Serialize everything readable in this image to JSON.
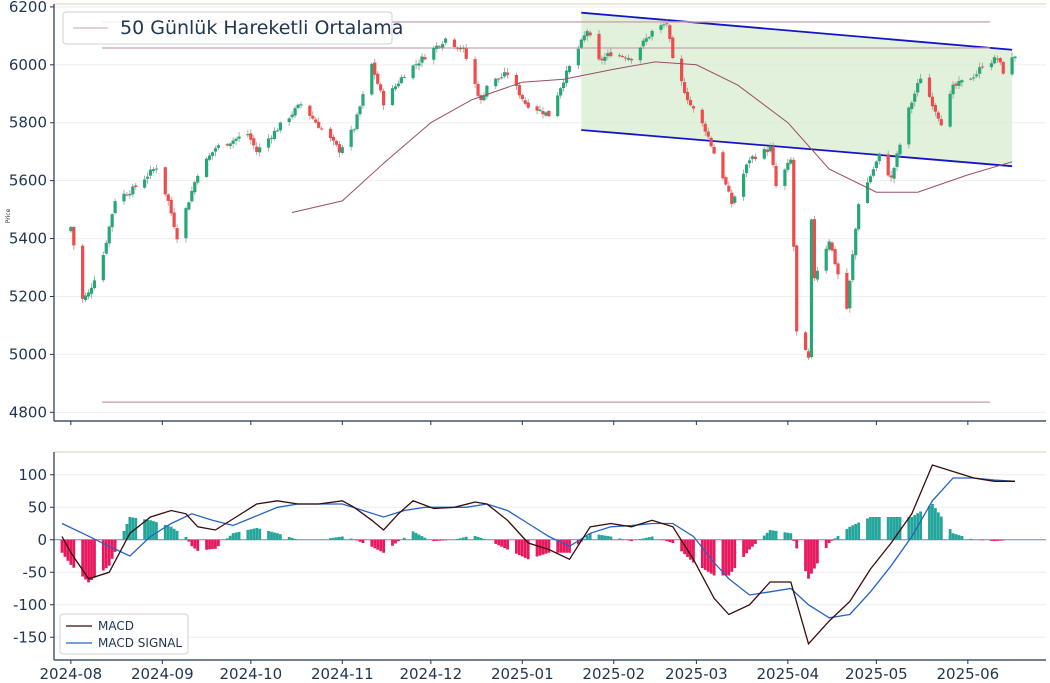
{
  "chart_data": [
    {
      "type": "candlestick",
      "ylabel": "Price",
      "ylim": [
        4770,
        6210
      ],
      "yticks": [
        4800,
        5000,
        5200,
        5400,
        5600,
        5800,
        6000,
        6200
      ],
      "x_range": [
        "2024-07-29",
        "2025-06-18"
      ],
      "x_ticks": [
        "2024-08-01",
        "2024-09-01",
        "2024-10-01",
        "2024-11-01",
        "2024-12-01",
        "2025-01-01",
        "2025-02-01",
        "2025-03-01",
        "2025-04-01",
        "2025-05-01",
        "2025-06-01"
      ],
      "x_tick_labels": [
        "2024-08",
        "2024-09",
        "2024-10",
        "2024-11",
        "2024-12",
        "2025-01",
        "2025-02",
        "2025-03",
        "2025-04",
        "2025-05",
        "2025-06"
      ],
      "legend": {
        "label": "50 Günlük Hareketli Ortalama",
        "loc": "upper-left"
      },
      "colors": {
        "up": "#26a776",
        "down": "#ef4b4b",
        "ma": "#9a4e64",
        "channel": "#1515c8",
        "channel_fill": "#d6ebcc",
        "level": "#c9a5b0",
        "axis": "#1f3552"
      },
      "horizontal_levels": [
        6148,
        6058,
        4835
      ],
      "channel": {
        "start_date": "2025-01-21",
        "end_date": "2025-06-16",
        "upper": [
          6180,
          6052
        ],
        "lower": [
          5775,
          5650
        ]
      },
      "anchors": [
        [
          "2024-08-01",
          5440
        ],
        [
          "2024-08-05",
          5190
        ],
        [
          "2024-08-07",
          5210
        ],
        [
          "2024-08-12",
          5345
        ],
        [
          "2024-08-16",
          5535
        ],
        [
          "2024-08-22",
          5570
        ],
        [
          "2024-08-30",
          5648
        ],
        [
          "2024-09-03",
          5528
        ],
        [
          "2024-09-06",
          5408
        ],
        [
          "2024-09-13",
          5626
        ],
        [
          "2024-09-19",
          5713
        ],
        [
          "2024-09-30",
          5762
        ],
        [
          "2024-10-03",
          5700
        ],
        [
          "2024-10-10",
          5780
        ],
        [
          "2024-10-18",
          5864
        ],
        [
          "2024-10-31",
          5705
        ],
        [
          "2024-11-05",
          5782
        ],
        [
          "2024-11-11",
          6001
        ],
        [
          "2024-11-15",
          5870
        ],
        [
          "2024-11-22",
          5969
        ],
        [
          "2024-12-06",
          6090
        ],
        [
          "2024-12-12",
          6051
        ],
        [
          "2024-12-18",
          5872
        ],
        [
          "2024-12-20",
          5930
        ],
        [
          "2024-12-27",
          5970
        ],
        [
          "2025-01-02",
          5868
        ],
        [
          "2025-01-10",
          5827
        ],
        [
          "2025-01-15",
          5949
        ],
        [
          "2025-01-23",
          6119
        ],
        [
          "2025-01-27",
          6012
        ],
        [
          "2025-01-31",
          6040
        ],
        [
          "2025-02-07",
          6025
        ],
        [
          "2025-02-14",
          6114
        ],
        [
          "2025-02-19",
          6144
        ],
        [
          "2025-02-21",
          6013
        ],
        [
          "2025-02-27",
          5861
        ],
        [
          "2025-03-04",
          5778
        ],
        [
          "2025-03-10",
          5614
        ],
        [
          "2025-03-13",
          5521
        ],
        [
          "2025-03-19",
          5675
        ],
        [
          "2025-03-26",
          5712
        ],
        [
          "2025-03-28",
          5580
        ],
        [
          "2025-04-02",
          5670
        ],
        [
          "2025-04-04",
          5074
        ],
        [
          "2025-04-08",
          4982
        ],
        [
          "2025-04-09",
          5456
        ],
        [
          "2025-04-10",
          5268
        ],
        [
          "2025-04-15",
          5396
        ],
        [
          "2025-04-21",
          5158
        ],
        [
          "2025-04-25",
          5525
        ],
        [
          "2025-05-02",
          5686
        ],
        [
          "2025-05-06",
          5606
        ],
        [
          "2025-05-12",
          5844
        ],
        [
          "2025-05-16",
          5958
        ],
        [
          "2025-05-21",
          5845
        ],
        [
          "2025-05-23",
          5802
        ],
        [
          "2025-05-27",
          5921
        ],
        [
          "2025-06-04",
          5970
        ],
        [
          "2025-06-06",
          6000
        ],
        [
          "2025-06-11",
          6022
        ],
        [
          "2025-06-13",
          5977
        ],
        [
          "2025-06-17",
          6033
        ]
      ],
      "ma_anchors": [
        [
          "2024-10-15",
          5490
        ],
        [
          "2024-11-01",
          5530
        ],
        [
          "2024-11-15",
          5660
        ],
        [
          "2024-12-01",
          5800
        ],
        [
          "2024-12-15",
          5880
        ],
        [
          "2025-01-01",
          5940
        ],
        [
          "2025-01-15",
          5950
        ],
        [
          "2025-02-01",
          5985
        ],
        [
          "2025-02-15",
          6010
        ],
        [
          "2025-03-01",
          6000
        ],
        [
          "2025-03-15",
          5930
        ],
        [
          "2025-04-01",
          5800
        ],
        [
          "2025-04-15",
          5640
        ],
        [
          "2025-05-01",
          5560
        ],
        [
          "2025-05-15",
          5560
        ],
        [
          "2025-06-01",
          5620
        ],
        [
          "2025-06-16",
          5665
        ]
      ]
    },
    {
      "type": "macd",
      "ylim": [
        -185,
        135
      ],
      "yticks": [
        -150,
        -100,
        -50,
        0,
        50,
        100
      ],
      "legend": {
        "entries": [
          "MACD",
          "MACD SIGNAL"
        ],
        "loc": "lower-left"
      },
      "colors": {
        "macd": "#3a0a0a",
        "signal": "#2563c4",
        "hist_pos": "#22a59a",
        "hist_neg": "#e8185e",
        "zero": "#7a8aa0"
      },
      "macd": [
        [
          "2024-07-29",
          5
        ],
        [
          "2024-08-01",
          -20
        ],
        [
          "2024-08-07",
          -60
        ],
        [
          "2024-08-14",
          -50
        ],
        [
          "2024-08-21",
          10
        ],
        [
          "2024-08-28",
          35
        ],
        [
          "2024-09-04",
          45
        ],
        [
          "2024-09-09",
          40
        ],
        [
          "2024-09-13",
          20
        ],
        [
          "2024-09-19",
          15
        ],
        [
          "2024-09-26",
          35
        ],
        [
          "2024-10-03",
          55
        ],
        [
          "2024-10-10",
          60
        ],
        [
          "2024-10-17",
          55
        ],
        [
          "2024-10-24",
          55
        ],
        [
          "2024-11-01",
          60
        ],
        [
          "2024-11-05",
          50
        ],
        [
          "2024-11-11",
          30
        ],
        [
          "2024-11-15",
          15
        ],
        [
          "2024-11-20",
          40
        ],
        [
          "2024-11-25",
          60
        ],
        [
          "2024-12-02",
          48
        ],
        [
          "2024-12-09",
          50
        ],
        [
          "2024-12-16",
          58
        ],
        [
          "2024-12-20",
          55
        ],
        [
          "2024-12-27",
          30
        ],
        [
          "2025-01-03",
          -5
        ],
        [
          "2025-01-10",
          -15
        ],
        [
          "2025-01-17",
          -30
        ],
        [
          "2025-01-24",
          20
        ],
        [
          "2025-01-31",
          25
        ],
        [
          "2025-02-07",
          20
        ],
        [
          "2025-02-14",
          30
        ],
        [
          "2025-02-21",
          20
        ],
        [
          "2025-02-28",
          -30
        ],
        [
          "2025-03-07",
          -90
        ],
        [
          "2025-03-12",
          -115
        ],
        [
          "2025-03-19",
          -100
        ],
        [
          "2025-03-26",
          -65
        ],
        [
          "2025-04-02",
          -65
        ],
        [
          "2025-04-08",
          -160
        ],
        [
          "2025-04-15",
          -125
        ],
        [
          "2025-04-22",
          -95
        ],
        [
          "2025-04-29",
          -45
        ],
        [
          "2025-05-06",
          -5
        ],
        [
          "2025-05-13",
          40
        ],
        [
          "2025-05-20",
          115
        ],
        [
          "2025-05-27",
          105
        ],
        [
          "2025-06-03",
          95
        ],
        [
          "2025-06-10",
          90
        ],
        [
          "2025-06-17",
          90
        ]
      ],
      "signal": [
        [
          "2024-07-29",
          25
        ],
        [
          "2024-08-05",
          10
        ],
        [
          "2024-08-14",
          -10
        ],
        [
          "2024-08-21",
          -25
        ],
        [
          "2024-08-28",
          5
        ],
        [
          "2024-09-04",
          25
        ],
        [
          "2024-09-11",
          40
        ],
        [
          "2024-09-18",
          30
        ],
        [
          "2024-09-25",
          22
        ],
        [
          "2024-10-02",
          35
        ],
        [
          "2024-10-10",
          50
        ],
        [
          "2024-10-17",
          55
        ],
        [
          "2024-10-24",
          55
        ],
        [
          "2024-11-01",
          55
        ],
        [
          "2024-11-08",
          45
        ],
        [
          "2024-11-15",
          35
        ],
        [
          "2024-11-22",
          45
        ],
        [
          "2024-11-29",
          50
        ],
        [
          "2024-12-06",
          50
        ],
        [
          "2024-12-13",
          50
        ],
        [
          "2024-12-20",
          55
        ],
        [
          "2024-12-27",
          45
        ],
        [
          "2025-01-03",
          25
        ],
        [
          "2025-01-10",
          5
        ],
        [
          "2025-01-17",
          -10
        ],
        [
          "2025-01-24",
          10
        ],
        [
          "2025-01-31",
          20
        ],
        [
          "2025-02-07",
          22
        ],
        [
          "2025-02-14",
          25
        ],
        [
          "2025-02-21",
          25
        ],
        [
          "2025-02-28",
          5
        ],
        [
          "2025-03-07",
          -35
        ],
        [
          "2025-03-12",
          -60
        ],
        [
          "2025-03-19",
          -85
        ],
        [
          "2025-03-26",
          -80
        ],
        [
          "2025-04-02",
          -75
        ],
        [
          "2025-04-08",
          -100
        ],
        [
          "2025-04-15",
          -120
        ],
        [
          "2025-04-22",
          -115
        ],
        [
          "2025-04-29",
          -80
        ],
        [
          "2025-05-06",
          -40
        ],
        [
          "2025-05-13",
          5
        ],
        [
          "2025-05-20",
          60
        ],
        [
          "2025-05-27",
          95
        ],
        [
          "2025-06-03",
          95
        ],
        [
          "2025-06-10",
          92
        ],
        [
          "2025-06-17",
          90
        ]
      ]
    }
  ]
}
